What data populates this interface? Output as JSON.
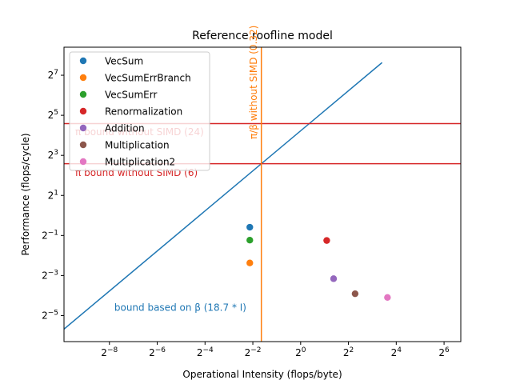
{
  "chart_data": {
    "type": "scatter",
    "title": "Reference roofline model",
    "xlabel": "Operational Intensity (flops/byte)",
    "ylabel": "Performance (flops/cycle)",
    "xscale": "log2",
    "yscale": "log2",
    "xlim_log2": [
      -9.9,
      6.7
    ],
    "ylim_log2": [
      -6.3,
      8.4
    ],
    "xticks_log2": [
      -8,
      -6,
      -4,
      -2,
      0,
      2,
      4,
      6
    ],
    "yticks_log2": [
      -5,
      -3,
      -1,
      1,
      3,
      5,
      7
    ],
    "grid": false,
    "legend": "upper left",
    "series": [
      {
        "name": "VecSum",
        "color": "#1f77b4",
        "points": [
          {
            "x": 0.229,
            "y": 0.665
          }
        ]
      },
      {
        "name": "VecSumErrBranch",
        "color": "#ff7f0e",
        "points": [
          {
            "x": 0.229,
            "y": 0.193
          }
        ]
      },
      {
        "name": "VecSumErr",
        "color": "#2ca02c",
        "points": [
          {
            "x": 0.229,
            "y": 0.425
          }
        ]
      },
      {
        "name": "Renormalization",
        "color": "#d62728",
        "points": [
          {
            "x": 2.13,
            "y": 0.42
          }
        ]
      },
      {
        "name": "Addition",
        "color": "#9467bd",
        "points": [
          {
            "x": 2.6,
            "y": 0.112
          }
        ]
      },
      {
        "name": "Multiplication",
        "color": "#8c564b",
        "points": [
          {
            "x": 4.85,
            "y": 0.0665
          }
        ]
      },
      {
        "name": "Multiplication2",
        "color": "#e377c2",
        "points": [
          {
            "x": 12.4,
            "y": 0.0585
          }
        ]
      }
    ],
    "lines": [
      {
        "kind": "slope",
        "slope": 18.7,
        "x_start": 0.00102,
        "x_end": 10.6,
        "color": "#1f77b4",
        "label": "bound based on β (18.7 * I)",
        "label_at": {
          "x": 0.0045,
          "y": 0.037
        }
      },
      {
        "kind": "horizontal",
        "y": 24,
        "color": "#d62728",
        "label": "π bound without SIMD (24)",
        "label_at": {
          "x": 0.00145,
          "y": 16
        }
      },
      {
        "kind": "horizontal",
        "y": 6,
        "color": "#d62728",
        "label": "π bound without SIMD (6)",
        "label_at": {
          "x": 0.00145,
          "y": 3.9
        }
      },
      {
        "kind": "vertical",
        "x": 0.32,
        "color": "#ff7f0e",
        "label": "π/β without SIMD (0.32)",
        "label_at": {
          "x": 0.28,
          "y": 14
        }
      }
    ]
  }
}
